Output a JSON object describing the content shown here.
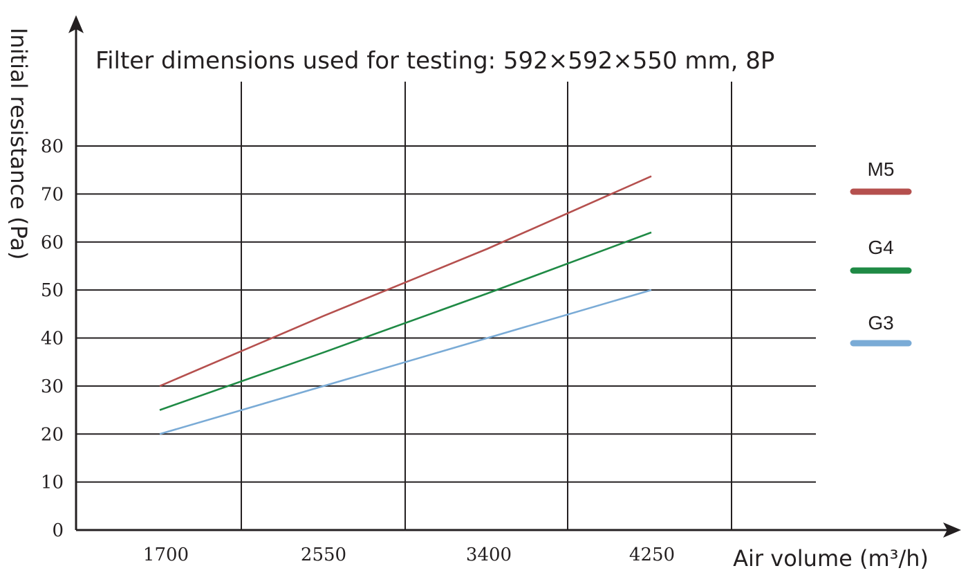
{
  "chart_data": {
    "type": "line",
    "title": "Filter dimensions used for testing: 592×592×550 mm, 8P",
    "xlabel": "Air volume (m³/h)",
    "ylabel": "Initial resistance (Pa)",
    "x_ticks": [
      "1700",
      "2550",
      "3400",
      "4250"
    ],
    "y_ticks": [
      "0",
      "10",
      "20",
      "30",
      "40",
      "50",
      "60",
      "70",
      "80"
    ],
    "xlim": [
      1700,
      4250
    ],
    "ylim": [
      0,
      80
    ],
    "grid": true,
    "legend_position": "right",
    "series": [
      {
        "name": "M5",
        "color": "#b5504e",
        "x": [
          1700,
          2550,
          3400,
          4250
        ],
        "y": [
          30,
          44.6,
          58.6,
          73.7
        ]
      },
      {
        "name": "G4",
        "color": "#1f8a45",
        "x": [
          1700,
          2550,
          3400,
          4250
        ],
        "y": [
          25,
          37,
          49.3,
          62
        ]
      },
      {
        "name": "G3",
        "color": "#7aabd6",
        "x": [
          1700,
          2550,
          3400,
          4250
        ],
        "y": [
          20,
          30,
          40,
          50
        ]
      }
    ]
  }
}
